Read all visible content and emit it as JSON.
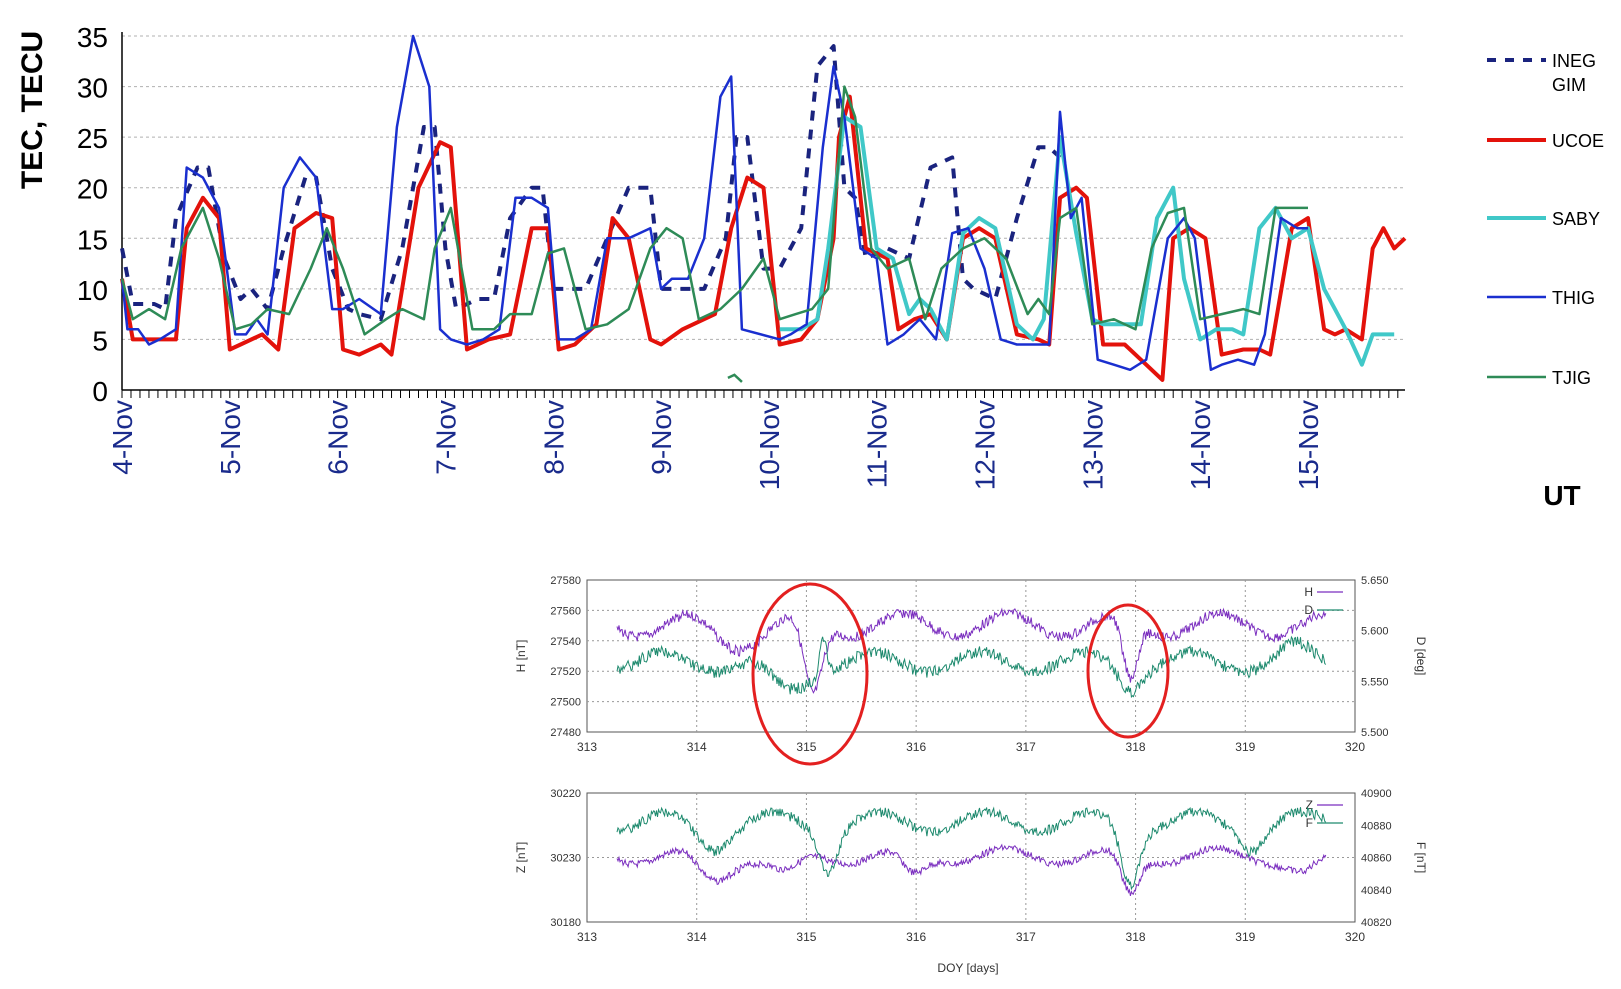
{
  "chart_data": [
    {
      "type": "line",
      "ylabel": "TEC, TECU",
      "xlabel": "UT",
      "ylim": [
        0,
        35
      ],
      "yticks": [
        0,
        5,
        10,
        15,
        20,
        25,
        30,
        35
      ],
      "xlim": [
        4,
        15.9
      ],
      "day_labels": [
        "4-Nov",
        "5-Nov",
        "6-Nov",
        "7-Nov",
        "8-Nov",
        "9-Nov",
        "10-Nov",
        "11-Nov",
        "12-Nov",
        "13-Nov",
        "14-Nov",
        "15-Nov"
      ],
      "grid": true,
      "legend_position": "right",
      "series": [
        {
          "name": "INEG\nGIM",
          "color": "#1a237e",
          "style": "dashed",
          "x": [
            4.0,
            4.1,
            4.3,
            4.4,
            4.5,
            4.7,
            4.8,
            4.95,
            5.1,
            5.2,
            5.35,
            5.5,
            5.7,
            5.8,
            5.95,
            6.1,
            6.2,
            6.4,
            6.6,
            6.8,
            6.9,
            7.0,
            7.1,
            7.3,
            7.45,
            7.6,
            7.8,
            7.9,
            8.0,
            8.1,
            8.3,
            8.5,
            8.7,
            8.9,
            9.0,
            9.2,
            9.4,
            9.6,
            9.7,
            9.8,
            9.95,
            10.1,
            10.3,
            10.45,
            10.6,
            10.7,
            10.8,
            10.9,
            11.1,
            11.3,
            11.5,
            11.7,
            11.8,
            11.9,
            12.1,
            12.3,
            12.5,
            12.6,
            12.7
          ],
          "y": [
            14,
            8.5,
            8.5,
            8,
            17,
            22,
            22,
            13,
            9,
            10,
            8,
            14,
            21,
            21,
            12,
            8,
            7.5,
            7,
            14,
            26,
            26,
            14,
            8,
            9,
            9,
            17,
            20,
            20,
            10,
            10,
            10,
            15,
            20,
            20,
            10,
            10,
            10,
            15,
            25,
            25,
            12,
            12,
            16,
            32,
            34,
            20,
            19,
            13,
            14,
            13,
            22,
            23,
            11,
            10,
            9,
            17,
            24,
            24,
            23
          ]
        },
        {
          "name": "UCOE",
          "color": "#e3120b",
          "style": "solid",
          "x": [
            4.0,
            4.1,
            4.3,
            4.5,
            4.6,
            4.75,
            4.9,
            5.0,
            5.1,
            5.3,
            5.45,
            5.6,
            5.8,
            5.95,
            6.05,
            6.2,
            6.4,
            6.5,
            6.75,
            6.95,
            7.05,
            7.2,
            7.4,
            7.6,
            7.8,
            7.95,
            8.05,
            8.2,
            8.4,
            8.55,
            8.7,
            8.9,
            9.0,
            9.2,
            9.5,
            9.65,
            9.8,
            9.95,
            10.1,
            10.3,
            10.45,
            10.6,
            10.65,
            10.75,
            10.9,
            11.1,
            11.2,
            11.35,
            11.5,
            11.65,
            11.8,
            11.95,
            12.1,
            12.3,
            12.5,
            12.6,
            12.7,
            12.85,
            12.95,
            13.1,
            13.3,
            13.45,
            13.65,
            13.75,
            13.9,
            14.05,
            14.2,
            14.4,
            14.55,
            14.65,
            14.85,
            15.0,
            15.15,
            15.25,
            15.35,
            15.5,
            15.6,
            15.7,
            15.8,
            15.9
          ],
          "y": [
            11,
            5,
            5,
            5,
            16,
            19,
            17,
            4,
            4.5,
            5.5,
            4,
            16,
            17.5,
            17,
            4,
            3.5,
            4.5,
            3.5,
            20,
            24.5,
            24,
            4,
            5,
            5.5,
            16,
            16,
            4,
            4.5,
            6.5,
            17,
            15,
            5,
            4.5,
            6,
            7.5,
            16,
            21,
            20,
            4.5,
            5,
            7,
            15,
            25,
            29,
            14,
            13,
            6,
            7,
            7.5,
            5,
            15,
            16,
            15,
            5.5,
            5,
            4.5,
            19,
            20,
            19,
            4.5,
            4.5,
            3,
            1,
            15,
            16,
            15,
            3.5,
            4,
            4,
            3.5,
            16,
            17,
            6,
            5.5,
            6,
            5,
            14,
            16,
            14,
            15
          ]
        },
        {
          "name": "SABY",
          "color": "#40c8c8",
          "style": "solid",
          "x": [
            10.1,
            10.3,
            10.45,
            10.55,
            10.7,
            10.85,
            11.0,
            11.15,
            11.3,
            11.4,
            11.5,
            11.65,
            11.8,
            11.95,
            12.1,
            12.3,
            12.45,
            12.55,
            12.7,
            12.85,
            13.0,
            13.1,
            13.3,
            13.45,
            13.6,
            13.75,
            13.85,
            14.0,
            14.15,
            14.3,
            14.4,
            14.55,
            14.7,
            14.85,
            15.0,
            15.15,
            15.25,
            15.35,
            15.5,
            15.6,
            15.7,
            15.8
          ],
          "y": [
            6,
            6,
            7,
            14,
            27,
            26,
            14,
            13,
            7.5,
            9,
            8,
            5,
            15.5,
            17,
            16,
            6.5,
            5,
            7,
            25,
            15.5,
            7,
            6.5,
            6.5,
            6.5,
            17,
            20,
            11,
            5,
            6,
            6,
            5.5,
            16,
            18,
            15,
            16,
            10,
            8,
            6,
            2.5,
            5.5,
            5.5,
            5.5
          ]
        },
        {
          "name": "THIG",
          "color": "#1a2fcf",
          "style": "solid",
          "x": [
            4.0,
            4.05,
            4.15,
            4.25,
            4.35,
            4.5,
            4.6,
            4.75,
            4.9,
            5.05,
            5.15,
            5.25,
            5.35,
            5.5,
            5.65,
            5.8,
            5.95,
            6.05,
            6.2,
            6.4,
            6.55,
            6.7,
            6.85,
            6.95,
            7.05,
            7.2,
            7.35,
            7.5,
            7.65,
            7.8,
            7.95,
            8.05,
            8.2,
            8.35,
            8.5,
            8.7,
            8.9,
            9.0,
            9.1,
            9.25,
            9.4,
            9.55,
            9.65,
            9.75,
            10.1,
            10.2,
            10.35,
            10.5,
            10.6,
            10.7,
            10.85,
            11.0,
            11.1,
            11.25,
            11.4,
            11.55,
            11.7,
            11.85,
            12.0,
            12.15,
            12.3,
            12.5,
            12.6,
            12.7,
            12.8,
            12.9,
            13.05,
            13.2,
            13.35,
            13.5,
            13.7,
            13.85,
            13.95,
            14.1,
            14.2,
            14.35,
            14.5,
            14.6,
            14.75,
            14.9,
            15.0
          ],
          "y": [
            11,
            6,
            6,
            4.5,
            5,
            6,
            22,
            21,
            18,
            5.5,
            5.5,
            7,
            5.5,
            20,
            23,
            21,
            8,
            8,
            9,
            7.5,
            26,
            35,
            30,
            6,
            5,
            4.5,
            5,
            6,
            19,
            19,
            18,
            5,
            5,
            6,
            15,
            15,
            16,
            10,
            11,
            11,
            15,
            29,
            31,
            6,
            5,
            5.5,
            6.5,
            24,
            32,
            27,
            14,
            13,
            4.5,
            5.5,
            7,
            5,
            15.5,
            16,
            12,
            5,
            4.5,
            4.5,
            4.5,
            27.5,
            17,
            19,
            3,
            2.5,
            2,
            3,
            15,
            17,
            15,
            2,
            2.5,
            3,
            2.5,
            5.5,
            17,
            16,
            16
          ]
        },
        {
          "name": "TJIG",
          "color": "#2e8b57",
          "style": "solid",
          "x": [
            4.0,
            4.1,
            4.25,
            4.4,
            4.55,
            4.75,
            4.9,
            5.05,
            5.2,
            5.35,
            5.55,
            5.75,
            5.9,
            6.05,
            6.25,
            6.45,
            6.6,
            6.8,
            6.9,
            7.05,
            7.25,
            7.45,
            7.6,
            7.8,
            7.95,
            8.1,
            8.3,
            8.5,
            8.7,
            8.9,
            9.05,
            9.2,
            9.35,
            9.55,
            9.75,
            9.95,
            10.1,
            10.25,
            10.4,
            10.55,
            10.7,
            10.8,
            10.95,
            11.1,
            11.3,
            11.45,
            11.6,
            11.8,
            12.0,
            12.2,
            12.4,
            12.5,
            12.6,
            12.7,
            12.85,
            13.0,
            13.2,
            13.4,
            13.55,
            13.7,
            13.85,
            14.0,
            14.2,
            14.4,
            14.55,
            14.7,
            14.9,
            15.0
          ],
          "y": [
            11,
            7,
            8,
            7,
            14,
            18,
            13,
            6,
            6.5,
            8,
            7.5,
            12,
            16,
            12,
            5.5,
            7,
            8,
            7,
            14,
            18,
            6,
            6,
            7.5,
            7.5,
            13.5,
            14,
            6,
            6.5,
            8,
            14,
            16,
            15,
            7,
            8,
            10,
            13,
            7,
            7.5,
            8,
            10,
            30,
            27,
            14,
            12,
            13,
            7,
            12,
            14,
            15,
            13,
            7.5,
            9,
            7.5,
            17,
            18,
            6.5,
            7,
            6,
            14,
            17.5,
            18,
            7,
            7.5,
            8,
            7.5,
            18,
            18,
            18
          ]
        }
      ]
    },
    {
      "type": "line",
      "title": "",
      "ylabel_left": "H [nT]",
      "ylabel_right": "D [deg]",
      "ylim_left": [
        27480,
        27580
      ],
      "ylim_right": [
        5.5,
        5.65
      ],
      "yticks_left": [
        "27580",
        "27560",
        "27540",
        "27520",
        "27500",
        "27480"
      ],
      "yticks_right": [
        "5.650",
        "5.600",
        "5.550",
        "5.500"
      ],
      "xticks": [
        "313",
        "314",
        "315",
        "316",
        "317",
        "318",
        "319",
        "320"
      ],
      "legend": [
        "H",
        "D"
      ],
      "series": [
        {
          "name": "H",
          "color": "#7b2fbf"
        },
        {
          "name": "D",
          "color": "#1e8a6e"
        }
      ]
    },
    {
      "type": "line",
      "title": "",
      "xlabel": "DOY [days]",
      "ylabel_left": "Z [nT]",
      "ylabel_right": "F [nT]",
      "yticks_left": [
        "30220",
        "30230",
        "30180"
      ],
      "yticks_right": [
        "40900",
        "40880",
        "40860",
        "40840",
        "40820"
      ],
      "xticks": [
        "313",
        "314",
        "315",
        "316",
        "317",
        "318",
        "319",
        "320"
      ],
      "legend": [
        "Z",
        "F"
      ],
      "series": [
        {
          "name": "Z",
          "color": "#7b2fbf"
        },
        {
          "name": "F",
          "color": "#1e8a6e"
        }
      ]
    }
  ]
}
